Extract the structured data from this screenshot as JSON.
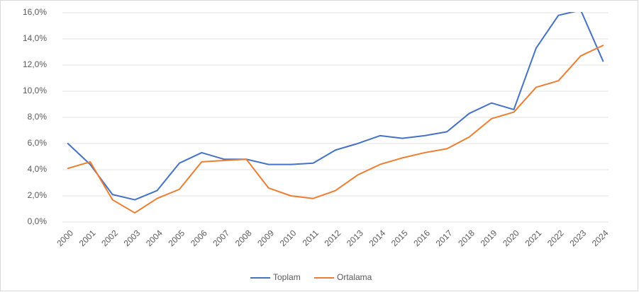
{
  "chart_data": {
    "type": "line",
    "categories": [
      "2000",
      "2001",
      "2002",
      "2003",
      "2004",
      "2005",
      "2006",
      "2007",
      "2008",
      "2009",
      "2010",
      "2011",
      "2012",
      "2013",
      "2014",
      "2015",
      "2016",
      "2017",
      "2018",
      "2019",
      "2020",
      "2021",
      "2022",
      "2023",
      "2024"
    ],
    "series": [
      {
        "name": "Toplam",
        "color": "#4472c4",
        "values": [
          6.0,
          4.4,
          2.1,
          1.7,
          2.4,
          4.5,
          5.3,
          4.8,
          4.8,
          4.4,
          4.4,
          4.5,
          5.5,
          6.0,
          6.6,
          6.4,
          6.6,
          6.9,
          8.3,
          9.1,
          8.6,
          13.3,
          15.8,
          16.2,
          12.3
        ]
      },
      {
        "name": "Ortalama",
        "color": "#ed7d31",
        "values": [
          4.1,
          4.6,
          1.7,
          0.7,
          1.8,
          2.5,
          4.6,
          4.7,
          4.8,
          2.6,
          2.0,
          1.8,
          2.4,
          3.6,
          4.4,
          4.9,
          5.3,
          5.6,
          6.5,
          7.9,
          8.4,
          10.3,
          10.8,
          12.7,
          13.5
        ]
      }
    ],
    "ylim": [
      0,
      16
    ],
    "yticks": [
      {
        "value": 0,
        "label": "0,0%"
      },
      {
        "value": 2,
        "label": "2,0%"
      },
      {
        "value": 4,
        "label": "4,0%"
      },
      {
        "value": 6,
        "label": "6,0%"
      },
      {
        "value": 8,
        "label": "8,0%"
      },
      {
        "value": 10,
        "label": "10,0%"
      },
      {
        "value": 12,
        "label": "12,0%"
      },
      {
        "value": 14,
        "label": "14,0%"
      },
      {
        "value": 16,
        "label": "16,0%"
      }
    ],
    "grid": true,
    "legend": "bottom"
  }
}
